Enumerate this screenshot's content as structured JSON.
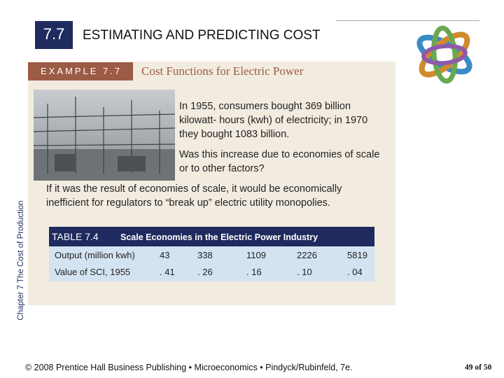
{
  "header": {
    "section": "7.7",
    "title": "ESTIMATING AND PREDICTING COST"
  },
  "sidebar": "Chapter 7 The Cost of Production",
  "example": {
    "label": "EXAMPLE 7.7",
    "title": "Cost Functions for Electric Power"
  },
  "paragraphs": [
    "In 1955, consumers bought 369 billion kilowatt- hours (kwh) of electricity; in 1970 they bought 1083 billion.",
    "Was this increase due to economies of scale or to other factors?",
    "If it was the result of economies of scale, it would be economically inefficient for regulators to “break up” electric utility monopolies."
  ],
  "table": {
    "label": "TABLE 7.4",
    "title": "Scale Economies in the Electric Power Industry",
    "rows": [
      [
        "Output (million kwh)",
        "43",
        "338",
        "1109",
        "2226",
        "5819"
      ],
      [
        "Value of SCI, 1955",
        ". 41",
        ". 26",
        ". 16",
        ". 10",
        ". 04"
      ]
    ]
  },
  "footer": {
    "credit": "© 2008 Prentice Hall Business Publishing • Microeconomics • Pindyck/Rubinfeld, 7e.",
    "page": "49 of 50"
  }
}
